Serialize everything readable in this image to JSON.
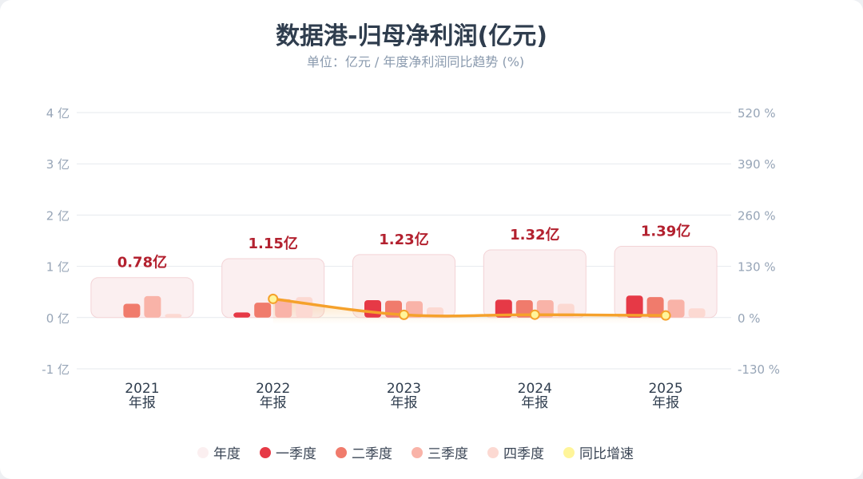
{
  "title": "数据港-归母净利润(亿元)",
  "subtitle": "单位：亿元 / 年度净利润同比趋势 (%)",
  "colors": {
    "annual": "#fbeff0",
    "q1": "#e63946",
    "q2": "#f07b6c",
    "q3": "#f9b3a8",
    "q4": "#fcd9d2",
    "yoy": "#f5a12b",
    "yoy_point": "#fff59a",
    "value_label": "#b3212f"
  },
  "legend": [
    {
      "label": "年度",
      "color": "#fbeff0"
    },
    {
      "label": "一季度",
      "color": "#e63946"
    },
    {
      "label": "二季度",
      "color": "#f07b6c"
    },
    {
      "label": "三季度",
      "color": "#f9b3a8"
    },
    {
      "label": "四季度",
      "color": "#fcd9d2"
    },
    {
      "label": "同比增速",
      "color": "#fff59a"
    }
  ],
  "chart_data": {
    "type": "bar",
    "categories": [
      "2021",
      "2022",
      "2023",
      "2024",
      "2025"
    ],
    "category_sublabel": "年报",
    "annual_labels": [
      "0.78亿",
      "1.15亿",
      "1.23亿",
      "1.32亿",
      "1.39亿"
    ],
    "series": [
      {
        "name": "年度",
        "values": [
          0.78,
          1.15,
          1.23,
          1.32,
          1.39
        ]
      },
      {
        "name": "一季度",
        "values": [
          null,
          0.1,
          0.34,
          0.35,
          0.43
        ]
      },
      {
        "name": "二季度",
        "values": [
          0.27,
          0.29,
          0.33,
          0.34,
          0.4
        ]
      },
      {
        "name": "三季度",
        "values": [
          0.42,
          0.36,
          0.32,
          0.34,
          0.35
        ]
      },
      {
        "name": "四季度",
        "values": [
          0.07,
          0.4,
          0.2,
          0.27,
          0.18
        ]
      },
      {
        "name": "同比增速",
        "axis": "right",
        "values": [
          null,
          47.4,
          7.0,
          7.3,
          5.3
        ]
      }
    ],
    "y_left": {
      "ticks": [
        -1,
        0,
        1,
        2,
        3,
        4
      ],
      "tick_labels": [
        "-1 亿",
        "0 亿",
        "1 亿",
        "2 亿",
        "3 亿",
        "4 亿"
      ],
      "range": [
        -1,
        4
      ]
    },
    "y_right": {
      "ticks": [
        -130,
        0,
        130,
        260,
        390,
        520
      ],
      "tick_labels": [
        "-130 %",
        "0 %",
        "130 %",
        "260 %",
        "390 %",
        "520 %"
      ],
      "range": [
        -130,
        520
      ]
    },
    "grid": true,
    "legend_position": "bottom"
  }
}
